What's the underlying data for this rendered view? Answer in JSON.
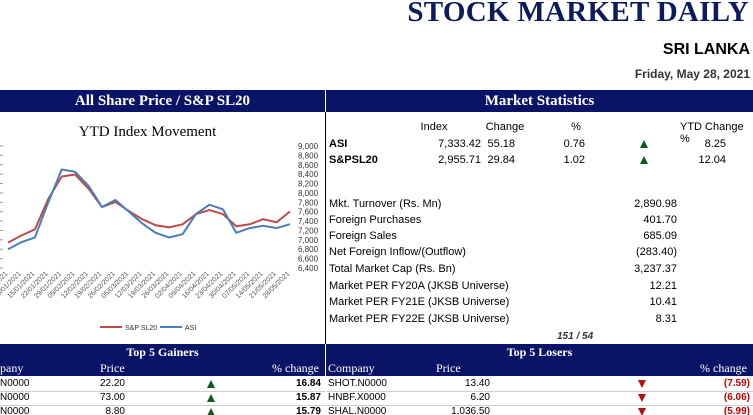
{
  "header": {
    "title": "STOCK MARKET DAILY",
    "country": "SRI LANKA",
    "date": "Friday, May 28, 2021"
  },
  "sections": {
    "left_band": "All Share Price / S&P SL20",
    "right_band": "Market Statistics",
    "gainers_band": "Top 5 Gainers",
    "losers_band": "Top 5 Losers"
  },
  "index_stats": {
    "headers": {
      "index": "Index",
      "change": "Change",
      "pct": "%",
      "ytd": "YTD Change %"
    },
    "rows": [
      {
        "name": "ASI",
        "index": "7,333.42",
        "change": "55.18",
        "pct": "0.76",
        "direction": "up",
        "ytd": "8.25"
      },
      {
        "name": "S&PSL20",
        "index": "2,955.71",
        "change": "29.84",
        "pct": "1.02",
        "direction": "up",
        "ytd": "12.04"
      }
    ]
  },
  "market_stats": [
    {
      "label": "Mkt. Turnover (Rs. Mn)",
      "value": "2,890.98"
    },
    {
      "label": "Foreign Purchases",
      "value": "401.70"
    },
    {
      "label": "Foreign Sales",
      "value": "685.09"
    },
    {
      "label": "Net Foreign Inflow/(Outflow)",
      "value": "(283.40)"
    },
    {
      "label": "Total Market Cap (Rs. Bn)",
      "value": "3,237.37"
    },
    {
      "label": "Market PER FY20A (JKSB Universe)",
      "value": "12.21"
    },
    {
      "label": "Market PER FY21E (JKSB Universe)",
      "value": "10.41"
    },
    {
      "label": "Market PER FY22E (JKSB Universe)",
      "value": "8.31"
    }
  ],
  "counter": "151 / 54",
  "gainers": {
    "headers": {
      "company": "pany",
      "price": "Price",
      "change": "% change"
    },
    "rows": [
      {
        "company": "N0000",
        "price": "22.20",
        "change": "16.84"
      },
      {
        "company": "N0000",
        "price": "73.00",
        "change": "15.87"
      },
      {
        "company": "N0000",
        "price": "8.80",
        "change": "15.79"
      }
    ]
  },
  "losers": {
    "headers": {
      "company": "Company",
      "price": "Price",
      "change": "% change"
    },
    "rows": [
      {
        "company": "SHOT.N0000",
        "price": "13.40",
        "change": "(7.59)"
      },
      {
        "company": "HNBF.X0000",
        "price": "6.20",
        "change": "(6.06)"
      },
      {
        "company": "SHAL.N0000",
        "price": "1,036.50",
        "change": "(5.99)"
      }
    ]
  },
  "colors": {
    "band": "#0a1467",
    "title": "#0d1b5e",
    "up": "#0b5a1f",
    "down": "#b01010",
    "loss_text": "#c00000",
    "asi_line": "#4a7ebb",
    "sp_line": "#be4b48"
  },
  "chart_data": {
    "type": "line",
    "title": "YTD Index Movement",
    "xlabel": "",
    "ylabel": "",
    "x": [
      "01/01/2021",
      "08/01/2021",
      "15/01/2021",
      "22/01/2021",
      "29/01/2021",
      "05/02/2021",
      "12/02/2021",
      "19/02/2021",
      "26/02/2021",
      "05/03/2021",
      "12/03/2021",
      "19/03/2021",
      "26/03/2021",
      "02/04/2021",
      "09/04/2021",
      "16/04/2021",
      "23/04/2021",
      "30/04/2021",
      "07/05/2021",
      "14/05/2021",
      "21/05/2021",
      "28/05/2021"
    ],
    "x_tick_labels": [
      "01/01/2021",
      "08/01/2021",
      "15/01/2021",
      "22/01/2021",
      "29/01/2021",
      "05/02/2021",
      "12/02/2021",
      "19/02/2021",
      "26/02/2021",
      "05/03/2021",
      "12/03/2021",
      "19/03/2021",
      "26/03/2021",
      "02/04/2021",
      "09/04/2021",
      "16/04/2021",
      "23/04/2021",
      "30/04/2021",
      "07/05/2021",
      "14/05/2021",
      "21/05/2021",
      "28/05/2021"
    ],
    "y_right_ticks": [
      "9,000",
      "8,800",
      "8,600",
      "8,400",
      "8,200",
      "8,000",
      "7,800",
      "7,600",
      "7,400",
      "7,200",
      "7,000",
      "6,800",
      "6,600",
      "6,400"
    ],
    "ylim_right": [
      6400,
      9000
    ],
    "ylim_left": [
      2400,
      3600
    ],
    "series": [
      {
        "name": "S&P SL20",
        "axis": "left",
        "values": [
          2650,
          2720,
          2780,
          3080,
          3300,
          3320,
          3180,
          3000,
          3050,
          2960,
          2880,
          2820,
          2800,
          2830,
          2930,
          2970,
          2930,
          2810,
          2830,
          2880,
          2850,
          2956
        ]
      },
      {
        "name": "ASI",
        "axis": "right",
        "values": [
          6800,
          6950,
          7050,
          7800,
          8500,
          8450,
          8150,
          7700,
          7850,
          7600,
          7350,
          7150,
          7050,
          7120,
          7550,
          7750,
          7650,
          7150,
          7250,
          7300,
          7250,
          7333
        ]
      }
    ],
    "legend": "bottom"
  }
}
